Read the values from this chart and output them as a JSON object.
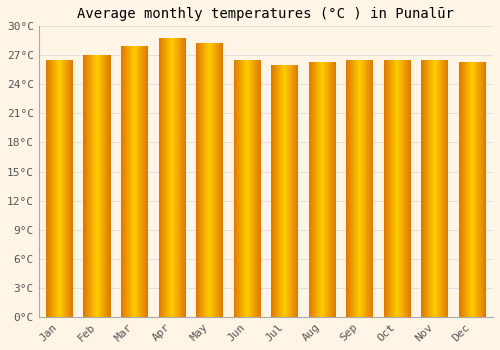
{
  "title": "Average monthly temperatures (°C ) in Punalūr",
  "months": [
    "Jan",
    "Feb",
    "Mar",
    "Apr",
    "May",
    "Jun",
    "Jul",
    "Aug",
    "Sep",
    "Oct",
    "Nov",
    "Dec"
  ],
  "values": [
    26.5,
    27.0,
    28.0,
    28.8,
    28.3,
    26.5,
    26.0,
    26.3,
    26.5,
    26.5,
    26.5,
    26.3
  ],
  "bar_color_center": "#FFD700",
  "bar_color_edge": "#E07800",
  "ylim": [
    0,
    30
  ],
  "yticks": [
    0,
    3,
    6,
    9,
    12,
    15,
    18,
    21,
    24,
    27,
    30
  ],
  "ytick_labels": [
    "0°C",
    "3°C",
    "6°C",
    "9°C",
    "12°C",
    "15°C",
    "18°C",
    "21°C",
    "24°C",
    "27°C",
    "30°C"
  ],
  "background_color": "#fef5e7",
  "plot_bg_color": "#fef5e7",
  "grid_color": "#dddddd",
  "title_fontsize": 10,
  "tick_fontsize": 8,
  "font_family": "monospace",
  "bar_width": 0.72,
  "gradient_steps": 50
}
